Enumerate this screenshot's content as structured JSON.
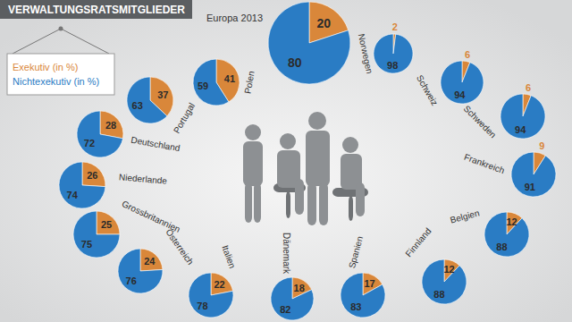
{
  "chart_data": {
    "type": "pie",
    "title": "VERWALTUNGSRATSMITGLIEDER",
    "categories": [
      "Europa 2013",
      "Polen",
      "Portugal",
      "Deutschland",
      "Niederlande",
      "Grossbritannien",
      "Österreich",
      "Italien",
      "Dänemark",
      "Spanien",
      "Finnland",
      "Belgien",
      "Frankreich",
      "Schweden",
      "Schweiz",
      "Norwegen"
    ],
    "series": [
      {
        "name": "Exekutiv (in %)",
        "color": "#d9873a",
        "values": [
          20,
          41,
          37,
          28,
          26,
          25,
          24,
          22,
          18,
          17,
          12,
          12,
          9,
          6,
          6,
          2
        ]
      },
      {
        "name": "Nichtexekutiv (in %)",
        "color": "#2a7cc4",
        "values": [
          80,
          59,
          63,
          72,
          74,
          75,
          76,
          78,
          82,
          83,
          88,
          88,
          91,
          94,
          94,
          98
        ]
      }
    ],
    "data_labels": true,
    "legend": "top-left"
  }
}
